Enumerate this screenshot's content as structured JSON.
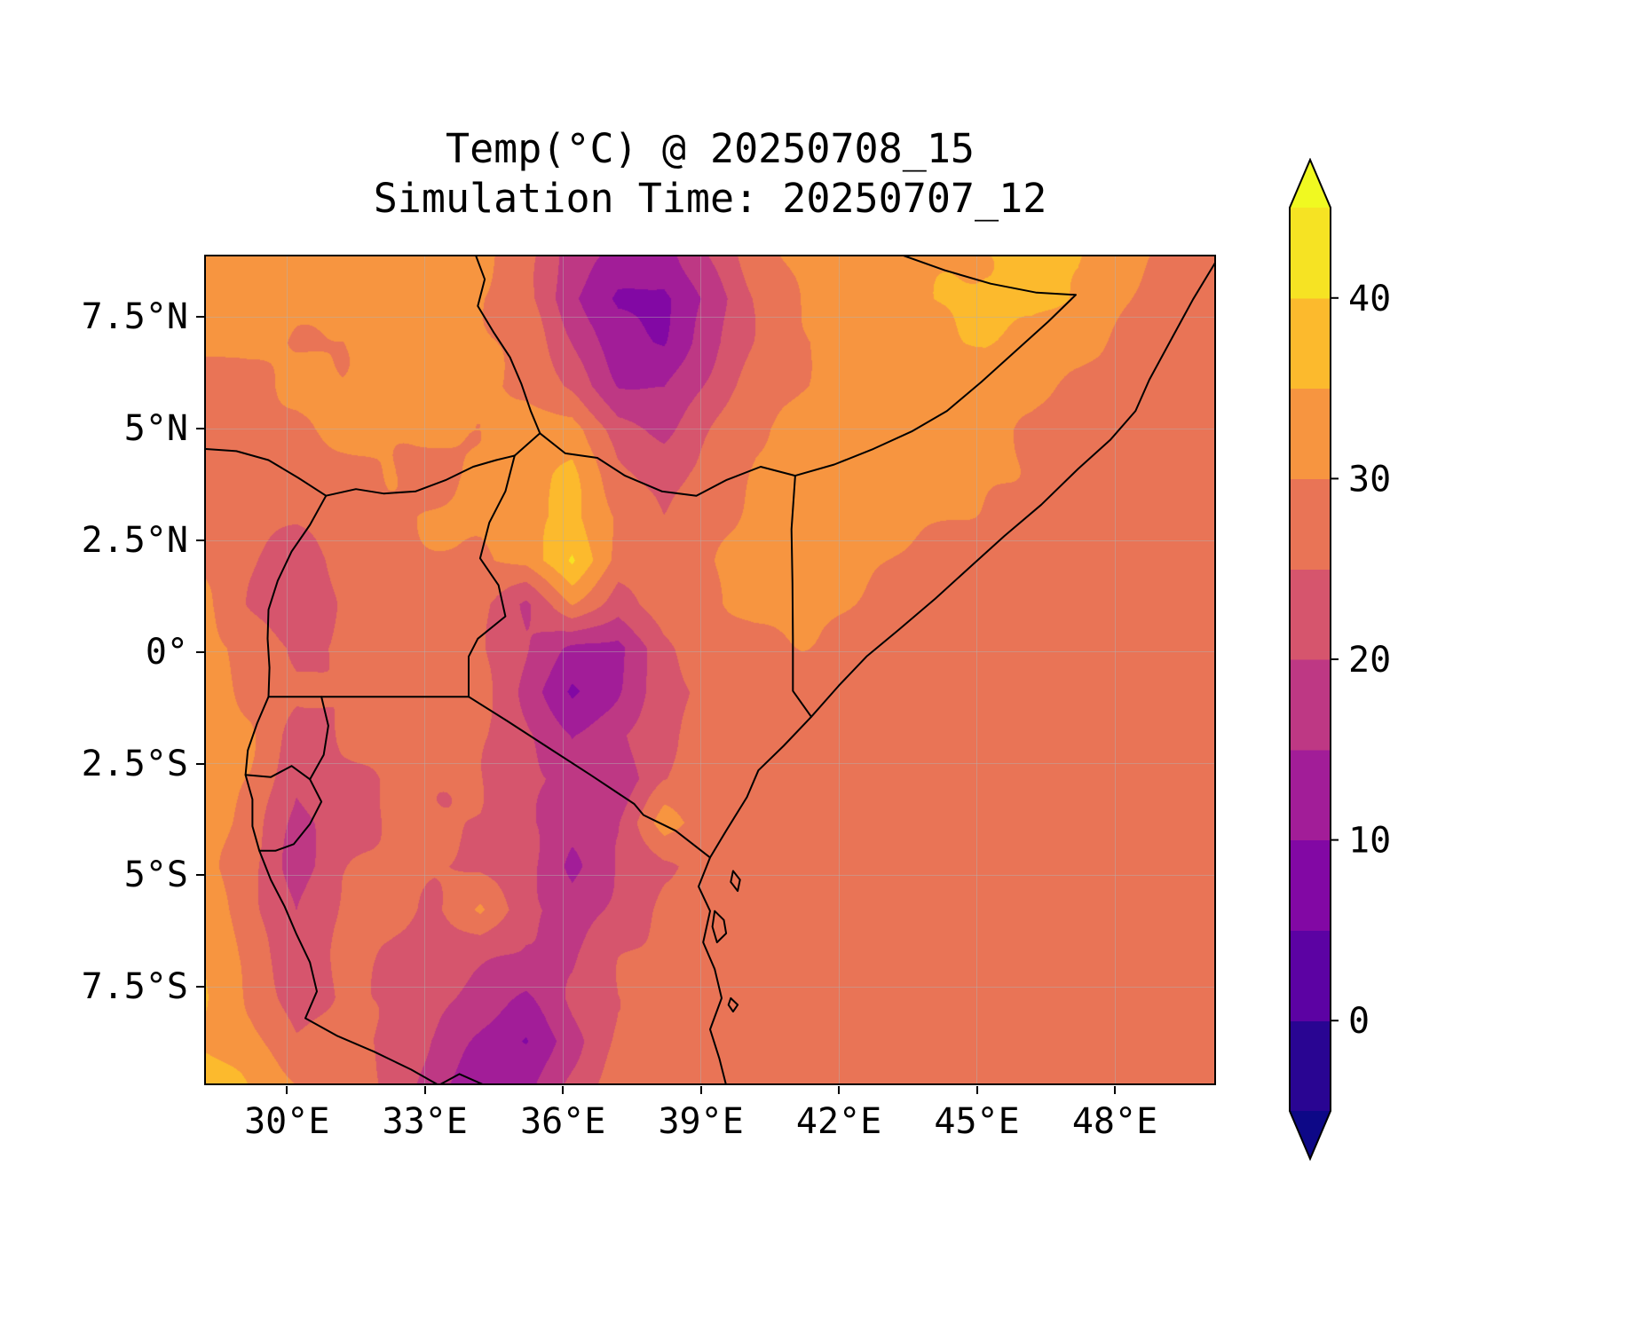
{
  "chart_data": {
    "type": "heatmap",
    "title": "Temp(°C) @ 20250708_15",
    "subtitle": "Simulation Time: 20250707_12",
    "variable": "Temperature",
    "unit": "°C",
    "colormap": "plasma",
    "grid_on": true,
    "lon_range": [
      28.2,
      50.2
    ],
    "lat_range": [
      8.9,
      -9.7
    ],
    "x_ticks": [
      {
        "label": "30°E",
        "value": 30
      },
      {
        "label": "33°E",
        "value": 33
      },
      {
        "label": "36°E",
        "value": 36
      },
      {
        "label": "39°E",
        "value": 39
      },
      {
        "label": "42°E",
        "value": 42
      },
      {
        "label": "45°E",
        "value": 45
      },
      {
        "label": "48°E",
        "value": 48
      }
    ],
    "y_ticks": [
      {
        "label": "7.5°N",
        "value": 7.5
      },
      {
        "label": "5°N",
        "value": 5
      },
      {
        "label": "2.5°N",
        "value": 2.5
      },
      {
        "label": "0°",
        "value": 0
      },
      {
        "label": "2.5°S",
        "value": -2.5
      },
      {
        "label": "5°S",
        "value": -5
      },
      {
        "label": "7.5°S",
        "value": -7.5
      }
    ],
    "colorbar": {
      "extend": "both",
      "levels": [
        -5,
        0,
        5,
        10,
        15,
        20,
        25,
        30,
        35,
        40,
        45
      ],
      "band_colors": [
        "#290592",
        "#5c02a3",
        "#8208a4",
        "#a21d98",
        "#be3884",
        "#d6556d",
        "#e97456",
        "#f79540",
        "#fcba2d",
        "#f6e323"
      ],
      "under_color": "#0d0887",
      "over_color": "#f0f921",
      "ticks": [
        {
          "label": "40",
          "value": 40
        },
        {
          "label": "30",
          "value": 30
        },
        {
          "label": "20",
          "value": 20
        },
        {
          "label": "10",
          "value": 10
        },
        {
          "label": "0",
          "value": 0
        }
      ]
    },
    "grid_shape": [
      20,
      23
    ],
    "grid_temps_c": [
      [
        32,
        32,
        31,
        31,
        32,
        32,
        31,
        28,
        18,
        14,
        12,
        20,
        28,
        32,
        33,
        34,
        35,
        36,
        36,
        35,
        31,
        29,
        27
      ],
      [
        32,
        32,
        31,
        31,
        32,
        31,
        30,
        27,
        16,
        9,
        8,
        16,
        26,
        31,
        33,
        34,
        35,
        36,
        36,
        34,
        30,
        27,
        27
      ],
      [
        31,
        31,
        30,
        30,
        31,
        31,
        30,
        28,
        20,
        12,
        10,
        18,
        26,
        30,
        32,
        33,
        34,
        35,
        34,
        32,
        29,
        27,
        27
      ],
      [
        30,
        30,
        30,
        30,
        31,
        31,
        30,
        29,
        24,
        16,
        15,
        21,
        27,
        30,
        32,
        33,
        33,
        33,
        32,
        30,
        28,
        27,
        27
      ],
      [
        29,
        29,
        29,
        30,
        31,
        31,
        31,
        32,
        33,
        22,
        19,
        24,
        29,
        31,
        32,
        32,
        32,
        31,
        30,
        28,
        27,
        27,
        27
      ],
      [
        28,
        28,
        28,
        29,
        30,
        30,
        31,
        33,
        35,
        26,
        23,
        27,
        30,
        32,
        32,
        32,
        31,
        30,
        29,
        27,
        27,
        27,
        27
      ],
      [
        28,
        27,
        27,
        28,
        29,
        30,
        31,
        33,
        36,
        29,
        26,
        29,
        31,
        32,
        32,
        31,
        30,
        29,
        28,
        27,
        27,
        27,
        27
      ],
      [
        29,
        26,
        21,
        27,
        28,
        29,
        30,
        32,
        41,
        28,
        28,
        30,
        32,
        32,
        31,
        30,
        29,
        28,
        27,
        27,
        27,
        27,
        27
      ],
      [
        30,
        24,
        20,
        26,
        27,
        28,
        27,
        20,
        30,
        22,
        27,
        30,
        31,
        31,
        30,
        29,
        28,
        27,
        27,
        27,
        27,
        27,
        27
      ],
      [
        31,
        28,
        25,
        26,
        27,
        27,
        26,
        20,
        14,
        12,
        24,
        29,
        30,
        30,
        29,
        28,
        27,
        27,
        27,
        27,
        27,
        27,
        27
      ],
      [
        32,
        29,
        26,
        26,
        27,
        27,
        26,
        19,
        9,
        15,
        23,
        27,
        29,
        29,
        28,
        27,
        27,
        27,
        27,
        27,
        27,
        27,
        27
      ],
      [
        33,
        30,
        22,
        25,
        27,
        27,
        26,
        21,
        16,
        19,
        24,
        26,
        28,
        27,
        27,
        27,
        27,
        27,
        27,
        27,
        27,
        27,
        27
      ],
      [
        33,
        29,
        20,
        24,
        26,
        26,
        25,
        21,
        19,
        16,
        24,
        26,
        27,
        27,
        27,
        27,
        27,
        27,
        27,
        27,
        27,
        27,
        27
      ],
      [
        34,
        28,
        18,
        23,
        26,
        26,
        24,
        20,
        17,
        20,
        33,
        26,
        27,
        27,
        27,
        27,
        27,
        27,
        27,
        27,
        27,
        27,
        27
      ],
      [
        33,
        27,
        17,
        24,
        26,
        25,
        24,
        21,
        14,
        21,
        25,
        27,
        27,
        27,
        27,
        27,
        27,
        27,
        27,
        27,
        27,
        27,
        27
      ],
      [
        34,
        27,
        19,
        25,
        26,
        25,
        31,
        22,
        17,
        22,
        26,
        27,
        27,
        27,
        27,
        27,
        27,
        27,
        27,
        27,
        27,
        27,
        27
      ],
      [
        35,
        28,
        21,
        26,
        25,
        24,
        22,
        19,
        19,
        24,
        26,
        27,
        27,
        27,
        27,
        27,
        27,
        27,
        27,
        27,
        27,
        27,
        27
      ],
      [
        35,
        30,
        23,
        26,
        24,
        22,
        18,
        14,
        20,
        25,
        27,
        27,
        27,
        27,
        27,
        27,
        27,
        27,
        27,
        27,
        27,
        27,
        27
      ],
      [
        34,
        32,
        26,
        27,
        23,
        19,
        14,
        10,
        18,
        26,
        27,
        27,
        27,
        27,
        27,
        27,
        27,
        27,
        27,
        27,
        27,
        27,
        27
      ],
      [
        39,
        34,
        30,
        28,
        24,
        17,
        11,
        14,
        22,
        27,
        27,
        27,
        27,
        27,
        27,
        27,
        27,
        27,
        27,
        27,
        27,
        27,
        27
      ]
    ],
    "borders": [
      {
        "name": "coastline",
        "points": [
          [
            50.2,
            8.75
          ],
          [
            49.7,
            7.9
          ],
          [
            49.25,
            7.05
          ],
          [
            48.75,
            6.1
          ],
          [
            48.45,
            5.4
          ],
          [
            47.9,
            4.75
          ],
          [
            47.2,
            4.1
          ],
          [
            46.4,
            3.3
          ],
          [
            45.6,
            2.6
          ],
          [
            44.9,
            1.95
          ],
          [
            44.1,
            1.2
          ],
          [
            43.3,
            0.5
          ],
          [
            42.6,
            -0.1
          ],
          [
            42.0,
            -0.75
          ],
          [
            41.4,
            -1.45
          ],
          [
            40.8,
            -2.1
          ],
          [
            40.25,
            -2.65
          ],
          [
            40.0,
            -3.25
          ],
          [
            39.55,
            -4.0
          ],
          [
            39.2,
            -4.6
          ],
          [
            38.95,
            -5.25
          ],
          [
            39.2,
            -5.8
          ],
          [
            39.05,
            -6.5
          ],
          [
            39.3,
            -7.1
          ],
          [
            39.45,
            -7.75
          ],
          [
            39.2,
            -8.45
          ],
          [
            39.4,
            -9.1
          ],
          [
            39.55,
            -9.7
          ]
        ]
      },
      {
        "name": "ethiopia-somalia",
        "points": [
          [
            43.35,
            8.9
          ],
          [
            44.3,
            8.55
          ],
          [
            45.3,
            8.25
          ],
          [
            46.3,
            8.05
          ],
          [
            47.15,
            8.0
          ],
          [
            46.55,
            7.4
          ],
          [
            45.85,
            6.75
          ],
          [
            45.1,
            6.05
          ],
          [
            44.35,
            5.4
          ],
          [
            43.6,
            4.95
          ],
          [
            42.75,
            4.55
          ],
          [
            41.9,
            4.2
          ],
          [
            41.05,
            3.95
          ]
        ]
      },
      {
        "name": "kenya-somalia",
        "points": [
          [
            41.05,
            3.95
          ],
          [
            40.97,
            2.75
          ],
          [
            40.99,
            1.55
          ],
          [
            41.0,
            0.3
          ],
          [
            41.0,
            -0.87
          ],
          [
            41.4,
            -1.45
          ]
        ]
      },
      {
        "name": "ethiopia-kenya",
        "points": [
          [
            41.05,
            3.95
          ],
          [
            40.3,
            4.15
          ],
          [
            39.55,
            3.85
          ],
          [
            38.9,
            3.5
          ],
          [
            38.15,
            3.6
          ],
          [
            37.35,
            3.95
          ],
          [
            36.75,
            4.35
          ],
          [
            36.05,
            4.45
          ],
          [
            35.5,
            4.9
          ]
        ]
      },
      {
        "name": "ethiopia-south-sudan",
        "points": [
          [
            34.1,
            8.9
          ],
          [
            34.3,
            8.35
          ],
          [
            34.15,
            7.75
          ],
          [
            34.5,
            7.15
          ],
          [
            34.85,
            6.6
          ],
          [
            35.1,
            6.0
          ],
          [
            35.3,
            5.4
          ],
          [
            35.5,
            4.9
          ]
        ]
      },
      {
        "name": "south-sudan-uganda-kenya",
        "points": [
          [
            30.85,
            3.5
          ],
          [
            31.5,
            3.65
          ],
          [
            32.1,
            3.55
          ],
          [
            32.8,
            3.6
          ],
          [
            33.45,
            3.85
          ],
          [
            34.05,
            4.15
          ],
          [
            34.55,
            4.3
          ],
          [
            34.95,
            4.4
          ],
          [
            35.5,
            4.9
          ]
        ]
      },
      {
        "name": "uganda-kenya",
        "points": [
          [
            34.95,
            4.4
          ],
          [
            34.75,
            3.6
          ],
          [
            34.4,
            2.9
          ],
          [
            34.2,
            2.1
          ],
          [
            34.6,
            1.5
          ],
          [
            34.75,
            0.8
          ],
          [
            34.15,
            0.3
          ],
          [
            33.95,
            -0.1
          ],
          [
            33.95,
            -1.0
          ]
        ]
      },
      {
        "name": "drc-south-sudan",
        "points": [
          [
            28.2,
            4.55
          ],
          [
            28.9,
            4.5
          ],
          [
            29.6,
            4.3
          ],
          [
            30.25,
            3.9
          ],
          [
            30.85,
            3.5
          ]
        ]
      },
      {
        "name": "drc-rift-west",
        "points": [
          [
            30.85,
            3.5
          ],
          [
            30.5,
            2.85
          ],
          [
            30.1,
            2.25
          ],
          [
            29.8,
            1.6
          ],
          [
            29.6,
            0.95
          ],
          [
            29.58,
            0.3
          ],
          [
            29.62,
            -0.35
          ],
          [
            29.6,
            -1.0
          ],
          [
            29.35,
            -1.6
          ],
          [
            29.15,
            -2.2
          ],
          [
            29.1,
            -2.75
          ],
          [
            29.25,
            -3.3
          ],
          [
            29.25,
            -3.9
          ],
          [
            29.4,
            -4.45
          ],
          [
            29.65,
            -5.1
          ],
          [
            29.95,
            -5.7
          ],
          [
            30.2,
            -6.3
          ],
          [
            30.5,
            -6.95
          ],
          [
            30.65,
            -7.6
          ],
          [
            30.4,
            -8.2
          ],
          [
            31.1,
            -8.6
          ],
          [
            31.9,
            -8.95
          ],
          [
            32.7,
            -9.35
          ],
          [
            33.3,
            -9.7
          ]
        ]
      },
      {
        "name": "uganda-tanzania",
        "points": [
          [
            29.6,
            -1.0
          ],
          [
            30.5,
            -1.0
          ],
          [
            31.4,
            -1.0
          ],
          [
            32.4,
            -1.0
          ],
          [
            33.3,
            -1.0
          ],
          [
            33.95,
            -1.0
          ]
        ]
      },
      {
        "name": "rwanda-burundi-east",
        "points": [
          [
            30.75,
            -1.0
          ],
          [
            30.9,
            -1.65
          ],
          [
            30.8,
            -2.3
          ],
          [
            30.5,
            -2.85
          ],
          [
            30.75,
            -3.35
          ],
          [
            30.5,
            -3.85
          ],
          [
            30.15,
            -4.3
          ],
          [
            29.75,
            -4.45
          ],
          [
            29.4,
            -4.45
          ]
        ]
      },
      {
        "name": "rwanda-burundi",
        "points": [
          [
            29.1,
            -2.75
          ],
          [
            29.65,
            -2.8
          ],
          [
            30.1,
            -2.55
          ],
          [
            30.5,
            -2.85
          ]
        ]
      },
      {
        "name": "kenya-tanzania",
        "points": [
          [
            33.95,
            -1.0
          ],
          [
            34.8,
            -1.55
          ],
          [
            35.7,
            -2.15
          ],
          [
            36.6,
            -2.75
          ],
          [
            37.55,
            -3.4
          ],
          [
            37.75,
            -3.65
          ],
          [
            38.45,
            -4.0
          ],
          [
            39.2,
            -4.6
          ]
        ]
      },
      {
        "name": "tanzania-malawi",
        "points": [
          [
            33.3,
            -9.7
          ],
          [
            33.75,
            -9.45
          ],
          [
            34.3,
            -9.7
          ]
        ]
      },
      {
        "name": "pemba-island",
        "points": [
          [
            39.7,
            -4.9
          ],
          [
            39.85,
            -5.1
          ],
          [
            39.8,
            -5.35
          ],
          [
            39.65,
            -5.15
          ],
          [
            39.7,
            -4.9
          ]
        ]
      },
      {
        "name": "zanzibar-island",
        "points": [
          [
            39.3,
            -5.8
          ],
          [
            39.5,
            -6.0
          ],
          [
            39.55,
            -6.3
          ],
          [
            39.35,
            -6.5
          ],
          [
            39.25,
            -6.15
          ],
          [
            39.3,
            -5.8
          ]
        ]
      },
      {
        "name": "mafia-island",
        "points": [
          [
            39.65,
            -7.75
          ],
          [
            39.8,
            -7.9
          ],
          [
            39.7,
            -8.05
          ],
          [
            39.6,
            -7.9
          ],
          [
            39.65,
            -7.75
          ]
        ]
      }
    ]
  }
}
